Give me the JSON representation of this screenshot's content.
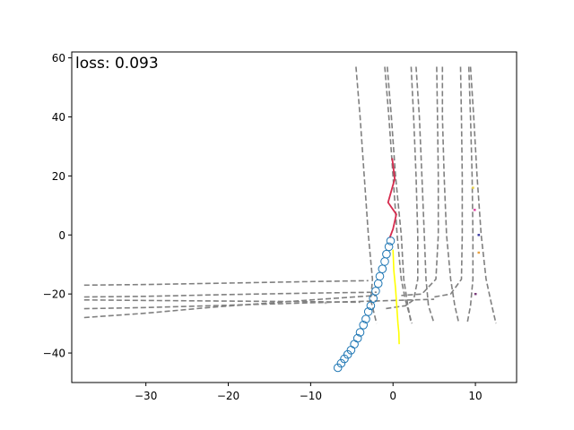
{
  "chart_data": {
    "type": "scatter",
    "title": "",
    "xlabel": "",
    "ylabel": "",
    "xlim": [
      -39,
      15
    ],
    "ylim": [
      -50,
      62
    ],
    "grid": false,
    "annotation": "loss: 0.093",
    "xticks": [
      -30,
      -20,
      -10,
      0,
      10
    ],
    "yticks": [
      -40,
      -20,
      0,
      20,
      40,
      60
    ],
    "xtick_labels": [
      "−30",
      "−20",
      "−10",
      "0",
      "10"
    ],
    "ytick_labels": [
      "−40",
      "−20",
      "0",
      "20",
      "40",
      "60"
    ],
    "lane_color": "#808080",
    "lanes": [
      [
        [
          -37.5,
          -17
        ],
        [
          -30,
          -16.8
        ],
        [
          -20,
          -16.3
        ],
        [
          -10,
          -15.8
        ],
        [
          -3,
          -15.5
        ]
      ],
      [
        [
          -37.5,
          -21
        ],
        [
          -30,
          -20.8
        ],
        [
          -20,
          -20.2
        ],
        [
          -10,
          -19.7
        ],
        [
          -2,
          -19.4
        ]
      ],
      [
        [
          -37.5,
          -22
        ],
        [
          -30,
          -22.2
        ],
        [
          -20,
          -22.4
        ],
        [
          -10,
          -22.6
        ],
        [
          -4,
          -22.8
        ]
      ],
      [
        [
          -37.5,
          -25
        ],
        [
          -30,
          -24.6
        ],
        [
          -20,
          -23.8
        ],
        [
          -10,
          -23
        ],
        [
          -1,
          -22.3
        ],
        [
          5,
          -21.8
        ]
      ],
      [
        [
          -37.5,
          -28
        ],
        [
          -30,
          -26.5
        ],
        [
          -22,
          -24.5
        ],
        [
          -10,
          -22
        ],
        [
          -2,
          -20.5
        ]
      ],
      [
        [
          -4.5,
          57
        ],
        [
          -4,
          40
        ],
        [
          -3.5,
          20
        ],
        [
          -3,
          0
        ],
        [
          -2.5,
          -15
        ],
        [
          -2.7,
          -22
        ],
        [
          -2,
          -30
        ]
      ],
      [
        [
          -1,
          57
        ],
        [
          -0.5,
          40
        ],
        [
          0,
          20
        ],
        [
          0.5,
          0
        ],
        [
          1,
          -15
        ],
        [
          1.5,
          -22
        ],
        [
          2.3,
          -30
        ]
      ],
      [
        [
          -0.7,
          57
        ],
        [
          -0.2,
          40
        ],
        [
          0.3,
          20
        ],
        [
          1,
          0
        ],
        [
          1.3,
          -15
        ],
        [
          1.8,
          -24
        ],
        [
          2.2,
          -30
        ]
      ],
      [
        [
          2.2,
          57
        ],
        [
          2.5,
          40
        ],
        [
          2.8,
          20
        ],
        [
          3,
          0
        ],
        [
          3,
          -15
        ],
        [
          2.5,
          -22
        ],
        [
          1.5,
          -24
        ],
        [
          -1,
          -25
        ]
      ],
      [
        [
          2.8,
          57
        ],
        [
          3.2,
          40
        ],
        [
          3.5,
          20
        ],
        [
          3.8,
          0
        ],
        [
          4,
          -15
        ],
        [
          4.3,
          -24
        ],
        [
          5,
          -30
        ]
      ],
      [
        [
          5.3,
          57
        ],
        [
          5.4,
          40
        ],
        [
          5.5,
          20
        ],
        [
          5.5,
          0
        ],
        [
          5.2,
          -15
        ],
        [
          3.5,
          -20
        ],
        [
          1,
          -20.5
        ]
      ],
      [
        [
          6,
          57
        ],
        [
          6,
          40
        ],
        [
          6.2,
          20
        ],
        [
          6.5,
          0
        ],
        [
          7,
          -15
        ],
        [
          7.5,
          -24
        ],
        [
          8,
          -30
        ]
      ],
      [
        [
          8.2,
          57
        ],
        [
          8.3,
          40
        ],
        [
          8.4,
          20
        ],
        [
          8.4,
          0
        ],
        [
          8.3,
          -15
        ],
        [
          7,
          -20
        ],
        [
          5,
          -21
        ]
      ],
      [
        [
          9.2,
          57
        ],
        [
          9.4,
          40
        ],
        [
          9.6,
          20
        ],
        [
          9.7,
          0
        ],
        [
          9.7,
          -15
        ],
        [
          9.4,
          -24
        ],
        [
          9,
          -30
        ]
      ],
      [
        [
          9.4,
          57
        ],
        [
          9.8,
          40
        ],
        [
          10.2,
          20
        ],
        [
          10.7,
          0
        ],
        [
          11.3,
          -15
        ],
        [
          12,
          -24
        ],
        [
          12.5,
          -30
        ]
      ]
    ],
    "red_path": {
      "color": "#d62c4e",
      "x": [
        -0.1,
        0.2,
        -0.6,
        0.4,
        0,
        -0.4
      ],
      "y": [
        26,
        19,
        11,
        7,
        2,
        -1
      ]
    },
    "yellow_path": {
      "color": "#ffff00",
      "x": [
        0,
        0.1,
        0.3,
        0.4,
        0.5,
        0.6,
        0.7,
        0.75
      ],
      "y": [
        -5,
        -12,
        -18,
        -22,
        -26,
        -30,
        -33,
        -37
      ]
    },
    "blue_circles": {
      "color": "#1f77b4",
      "x": [
        -0.3,
        -0.5,
        -0.8,
        -1.0,
        -1.3,
        -1.6,
        -1.8,
        -2.1,
        -2.4,
        -2.7,
        -3.0,
        -3.3,
        -3.6,
        -4.0,
        -4.3,
        -4.7,
        -5.1,
        -5.5,
        -5.9,
        -6.3,
        -6.7
      ],
      "y": [
        -2,
        -4,
        -6.5,
        -9,
        -11.5,
        -14,
        -16.5,
        -19,
        -21.5,
        -24,
        -26,
        -28.5,
        -30.5,
        -33,
        -35,
        -37,
        -39,
        -40.5,
        -42,
        -43.5,
        -45
      ]
    },
    "small_marks": [
      {
        "x": 9.7,
        "y": 16,
        "color": "#e8d24a"
      },
      {
        "x": 9.9,
        "y": 8.5,
        "color": "#e040a0"
      },
      {
        "x": 10.4,
        "y": 0,
        "color": "#3a3aa0"
      },
      {
        "x": 10.4,
        "y": -6,
        "color": "#e8a040"
      },
      {
        "x": 10.0,
        "y": -20,
        "color": "#7a3a7a"
      },
      {
        "x": -8.2,
        "y": -23,
        "color": "#b0b0b0"
      }
    ]
  }
}
